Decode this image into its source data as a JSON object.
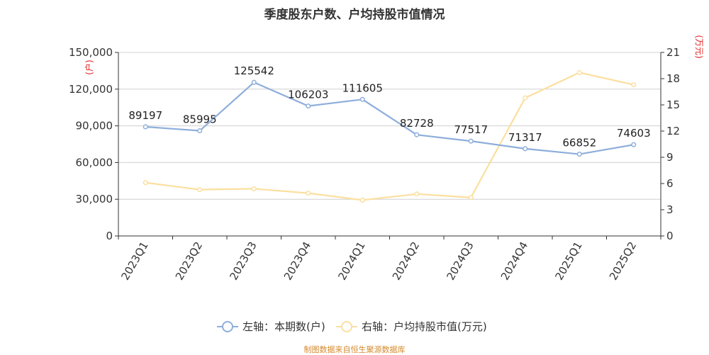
{
  "title": "季度股东户数、户均持股市值情况",
  "source": "制图数据来自恒生聚源数据库",
  "colors": {
    "left_series": "#8eaedb",
    "right_series": "#fbdf9f",
    "unit_label": "#e02020"
  },
  "chart_data": {
    "type": "line",
    "categories": [
      "2023Q1",
      "2023Q2",
      "2023Q3",
      "2023Q4",
      "2024Q1",
      "2024Q2",
      "2024Q3",
      "2024Q4",
      "2025Q1",
      "2025Q2"
    ],
    "y_left": {
      "unit": "(户)",
      "ylim": [
        0,
        150000
      ],
      "ticks": [
        "0",
        "30,000",
        "60,000",
        "90,000",
        "120,000",
        "150,000"
      ],
      "tick_values": [
        0,
        30000,
        60000,
        90000,
        120000,
        150000
      ]
    },
    "y_right": {
      "unit": "(万元)",
      "ylim": [
        0,
        21
      ],
      "ticks": [
        "0",
        "3",
        "6",
        "9",
        "12",
        "15",
        "18",
        "21"
      ],
      "tick_values": [
        0,
        3,
        6,
        9,
        12,
        15,
        18,
        21
      ]
    },
    "grid": true,
    "legend_position": "bottom",
    "series": [
      {
        "name": "左轴：本期数(户)",
        "axis": "left",
        "values": [
          89197,
          85995,
          125542,
          106203,
          111605,
          82728,
          77517,
          71317,
          66852,
          74603
        ],
        "labels": [
          "89197",
          "85995",
          "125542",
          "106203",
          "111605",
          "82728",
          "77517",
          "71317",
          "66852",
          "74603"
        ]
      },
      {
        "name": "右轴：户均持股市值(万元)",
        "axis": "right",
        "values": [
          6.1,
          5.3,
          5.4,
          4.9,
          4.1,
          4.8,
          4.4,
          15.8,
          18.7,
          17.3
        ]
      }
    ]
  }
}
